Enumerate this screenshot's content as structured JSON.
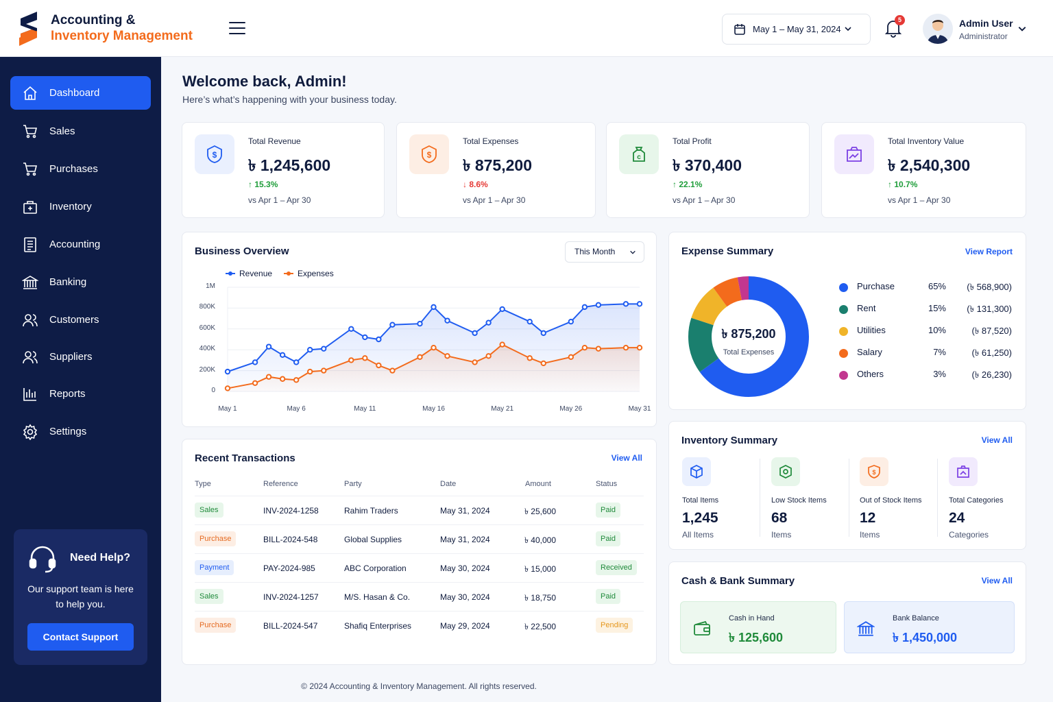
{
  "app": {
    "title_line1": "Accounting &",
    "title_line2": "Inventory Management"
  },
  "header": {
    "date_range": "May 1 – May 31, 2024",
    "notifications": "5",
    "user_name": "Admin User",
    "user_role": "Administrator"
  },
  "sidebar": {
    "items": [
      {
        "label": "Dashboard",
        "icon": "home-icon",
        "active": true
      },
      {
        "label": "Sales",
        "icon": "cart-icon"
      },
      {
        "label": "Purchases",
        "icon": "cart-icon"
      },
      {
        "label": "Inventory",
        "icon": "box-icon"
      },
      {
        "label": "Accounting",
        "icon": "ledger-icon"
      },
      {
        "label": "Banking",
        "icon": "bank-icon"
      },
      {
        "label": "Customers",
        "icon": "users-icon"
      },
      {
        "label": "Suppliers",
        "icon": "users-icon"
      },
      {
        "label": "Reports",
        "icon": "bar-chart-icon"
      },
      {
        "label": "Settings",
        "icon": "gear-icon"
      }
    ],
    "help": {
      "title": "Need Help?",
      "text": "Our support team is here to help you.",
      "button": "Contact Support"
    }
  },
  "welcome": {
    "title": "Welcome back, Admin!",
    "subtitle": "Here’s what’s happening with your business today."
  },
  "kpis": [
    {
      "label": "Total Revenue",
      "value": "৳ 1,245,600",
      "change": "15.3%",
      "direction": "up",
      "compare": "vs Apr 1 – Apr 30",
      "color": "#1f5cf0",
      "bg": "#eaf0fe"
    },
    {
      "label": "Total Expenses",
      "value": "৳ 875,200",
      "change": "8.6%",
      "direction": "down",
      "compare": "vs Apr 1 – Apr 30",
      "color": "#f36b1c",
      "bg": "#fdeee4"
    },
    {
      "label": "Total Profit",
      "value": "৳ 370,400",
      "change": "22.1%",
      "direction": "up",
      "compare": "vs Apr 1 – Apr 30",
      "color": "#1f8a3a",
      "bg": "#e7f6ea"
    },
    {
      "label": "Total Inventory Value",
      "value": "৳ 2,540,300",
      "change": "10.7%",
      "direction": "up",
      "compare": "vs Apr 1 – Apr 30",
      "color": "#7b3fe4",
      "bg": "#f1eafd"
    }
  ],
  "overview": {
    "title": "Business Overview",
    "period": "This Month"
  },
  "chart_data": {
    "type": "line",
    "title": "Business Overview",
    "x": [
      "May 1",
      "May 3",
      "May 4",
      "May 5",
      "May 6",
      "May 7",
      "May 8",
      "May 10",
      "May 11",
      "May 12",
      "May 13",
      "May 15",
      "May 16",
      "May 17",
      "May 19",
      "May 20",
      "May 21",
      "May 23",
      "May 24",
      "May 26",
      "May 27",
      "May 28",
      "May 30",
      "May 31"
    ],
    "xticks": [
      "May 1",
      "May 6",
      "May 11",
      "May 16",
      "May 21",
      "May 26",
      "May 31"
    ],
    "yticks": [
      "0",
      "200K",
      "400K",
      "600K",
      "800K",
      "1M"
    ],
    "ylim": [
      0,
      1000000
    ],
    "series": [
      {
        "name": "Revenue",
        "color": "#1f5cf0",
        "values": [
          190000,
          280000,
          430000,
          350000,
          280000,
          400000,
          410000,
          600000,
          520000,
          500000,
          640000,
          650000,
          810000,
          680000,
          560000,
          660000,
          790000,
          670000,
          560000,
          670000,
          810000,
          830000,
          840000,
          840000
        ]
      },
      {
        "name": "Expenses",
        "color": "#f36b1c",
        "values": [
          30000,
          80000,
          140000,
          120000,
          110000,
          190000,
          200000,
          300000,
          320000,
          250000,
          200000,
          330000,
          420000,
          340000,
          280000,
          340000,
          450000,
          320000,
          270000,
          330000,
          420000,
          410000,
          420000,
          420000
        ]
      }
    ],
    "legend": "top-left",
    "grid": true
  },
  "transactions": {
    "title": "Recent Transactions",
    "view_all": "View All",
    "columns": [
      "Type",
      "Reference",
      "Party",
      "Date",
      "Amount",
      "Status"
    ],
    "rows": [
      {
        "type": "Sales",
        "type_class": "sales",
        "ref": "INV-2024-1258",
        "party": "Rahim Traders",
        "date": "May 31, 2024",
        "amount": "৳ 25,600",
        "status": "Paid",
        "status_class": "paid"
      },
      {
        "type": "Purchase",
        "type_class": "purchase",
        "ref": "BILL-2024-548",
        "party": "Global Supplies",
        "date": "May 31, 2024",
        "amount": "৳ 40,000",
        "status": "Paid",
        "status_class": "paid"
      },
      {
        "type": "Payment",
        "type_class": "payment",
        "ref": "PAY-2024-985",
        "party": "ABC Corporation",
        "date": "May 30, 2024",
        "amount": "৳ 15,000",
        "status": "Received",
        "status_class": "received"
      },
      {
        "type": "Sales",
        "type_class": "sales",
        "ref": "INV-2024-1257",
        "party": "M/S. Hasan & Co.",
        "date": "May 30, 2024",
        "amount": "৳ 18,750",
        "status": "Paid",
        "status_class": "paid"
      },
      {
        "type": "Purchase",
        "type_class": "purchase",
        "ref": "BILL-2024-547",
        "party": "Shafiq Enterprises",
        "date": "May 29, 2024",
        "amount": "৳ 22,500",
        "status": "Pending",
        "status_class": "pending"
      }
    ]
  },
  "expense": {
    "title": "Expense Summary",
    "view_report": "View Report",
    "total": "৳ 875,200",
    "total_label": "Total Expenses",
    "items": [
      {
        "name": "Purchase",
        "pct": "65%",
        "amount": "(৳ 568,900)",
        "share": 65,
        "color": "#1f5cf0"
      },
      {
        "name": "Rent",
        "pct": "15%",
        "amount": "(৳ 131,300)",
        "share": 15,
        "color": "#1a7f6e"
      },
      {
        "name": "Utilities",
        "pct": "10%",
        "amount": "(৳  87,520)",
        "share": 10,
        "color": "#f0b429"
      },
      {
        "name": "Salary",
        "pct": "7%",
        "amount": "(৳  61,250)",
        "share": 7,
        "color": "#f36b1c"
      },
      {
        "name": "Others",
        "pct": "3%",
        "amount": "(৳  26,230)",
        "share": 3,
        "color": "#c2378f"
      }
    ]
  },
  "inventory": {
    "title": "Inventory Summary",
    "view_all": "View All",
    "items": [
      {
        "label": "Total Items",
        "value": "1,245",
        "sub": "All Items",
        "color": "#1f5cf0",
        "bg": "#eaf0fe"
      },
      {
        "label": "Low Stock Items",
        "value": "68",
        "sub": "Items",
        "color": "#1f8a3a",
        "bg": "#e7f6ea"
      },
      {
        "label": "Out of Stock Items",
        "value": "12",
        "sub": "Items",
        "color": "#f36b1c",
        "bg": "#fdeee4"
      },
      {
        "label": "Total Categories",
        "value": "24",
        "sub": "Categories",
        "color": "#7b3fe4",
        "bg": "#f1eafd"
      }
    ]
  },
  "cashbank": {
    "title": "Cash & Bank Summary",
    "view_all": "View All",
    "cash_label": "Cash in Hand",
    "cash_value": "৳ 125,600",
    "bank_label": "Bank Balance",
    "bank_value": "৳ 1,450,000"
  },
  "footer": {
    "text": "© 2024 Accounting & Inventory Management. All rights reserved."
  }
}
